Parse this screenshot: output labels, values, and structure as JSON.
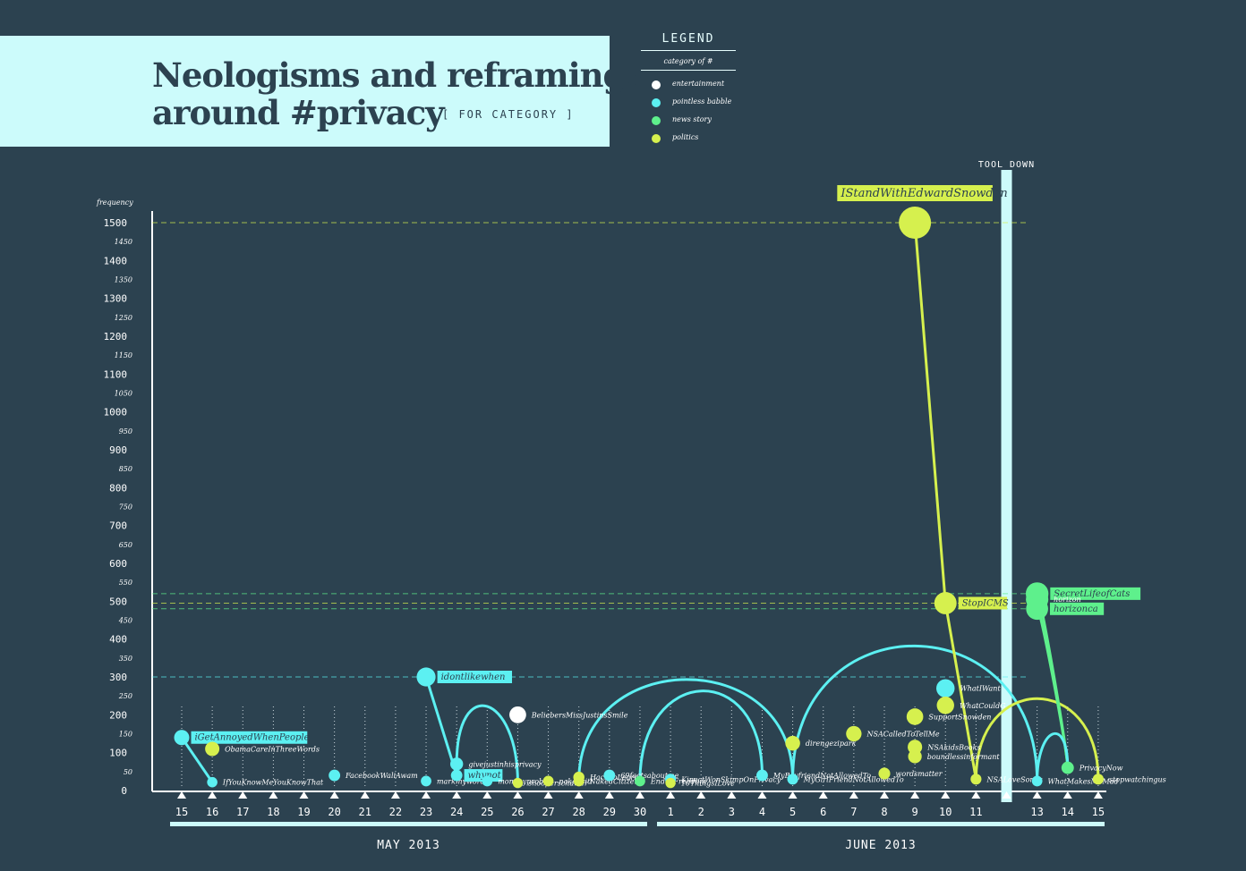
{
  "title": {
    "line1": "Neologisms  and reframings",
    "line2": "around #privacy",
    "tag": "[ FOR CATEGORY ]"
  },
  "legend": {
    "title": "LEGEND",
    "subtitle": "category of #",
    "items": [
      {
        "label": "entertainment",
        "color": "#ffffff"
      },
      {
        "label": "pointless babble",
        "color": "#5cf0f2"
      },
      {
        "label": "news story",
        "color": "#5ef08c"
      },
      {
        "label": "politics",
        "color": "#d6f04e"
      }
    ]
  },
  "colors": {
    "background": "#2c4250",
    "babble": "#5cf0f2",
    "news": "#5ef08c",
    "politics": "#d6f04e",
    "entertainment": "#ffffff",
    "accent": "#ccfbfb"
  },
  "chart_data": {
    "type": "scatter",
    "ylabel": "frequency",
    "ylim": [
      0,
      1500
    ],
    "y_ticks_major": [
      "0",
      "100",
      "200",
      "300",
      "400",
      "500",
      "600",
      "700",
      "800",
      "900",
      "1000",
      "1100",
      "1200",
      "1300",
      "1400",
      "1500"
    ],
    "y_ticks_minor": [
      "50",
      "150",
      "250",
      "350",
      "450",
      "550",
      "650",
      "750",
      "850",
      "950",
      "1050",
      "1150",
      "1250",
      "1350",
      "1450"
    ],
    "x_categories": [
      "15",
      "16",
      "17",
      "18",
      "19",
      "20",
      "21",
      "22",
      "23",
      "24",
      "25",
      "26",
      "27",
      "28",
      "29",
      "30",
      "1",
      "2",
      "3",
      "4",
      "5",
      "6",
      "7",
      "8",
      "9",
      "10",
      "11",
      "12",
      "13",
      "14",
      "15"
    ],
    "x_groups": [
      {
        "label": "MAY 2013",
        "from": 0,
        "to": 15
      },
      {
        "label": "JUNE 2013",
        "from": 16,
        "to": 30
      }
    ],
    "tool_down": {
      "label": "TOOL DOWN",
      "x": "12"
    },
    "points": [
      {
        "name": "iGetAnnoyedWhenPeople",
        "x": 0,
        "y": 140,
        "category": "babble",
        "highlight": true
      },
      {
        "name": "IfYouKnowMeYouKnowThat",
        "x": 1,
        "y": 22,
        "category": "babble"
      },
      {
        "name": "ObamaCareInThreeWords",
        "x": 1,
        "y": 110,
        "category": "politics"
      },
      {
        "name": "FacebookWaliAwam",
        "x": 5,
        "y": 40,
        "category": "babble"
      },
      {
        "name": "markmywords",
        "x": 8,
        "y": 25,
        "category": "babble"
      },
      {
        "name": "idontlikewhen",
        "x": 8,
        "y": 300,
        "category": "babble",
        "highlight": true
      },
      {
        "name": "whynot",
        "x": 9,
        "y": 40,
        "category": "babble",
        "highlight": true
      },
      {
        "name": "givejustinhisprivacy",
        "x": 9,
        "y": 70,
        "category": "babble"
      },
      {
        "name": "mommyprobs",
        "x": 10,
        "y": 25,
        "category": "babble"
      },
      {
        "name": "BeliebersMissJustinsSmile",
        "x": 11,
        "y": 200,
        "category": "entertainment"
      },
      {
        "name": "snooperscharter",
        "x": 11,
        "y": 20,
        "category": "politics"
      },
      {
        "name": "nakedciti",
        "x": 12,
        "y": 25,
        "category": "politics"
      },
      {
        "name": "NakedCitizens",
        "x": 13,
        "y": 25,
        "category": "politics"
      },
      {
        "name": "HackToLearn",
        "x": 13,
        "y": 35,
        "category": "politics"
      },
      {
        "name": "69factsaboutme",
        "x": 14,
        "y": 40,
        "category": "babble"
      },
      {
        "name": "EndOfFreedom",
        "x": 15,
        "y": 25,
        "category": "news"
      },
      {
        "name": "KinectWonSkimpOnPrivacy",
        "x": 16,
        "y": 30,
        "category": "babble"
      },
      {
        "name": "10ThingsILove",
        "x": 16,
        "y": 20,
        "category": "politics"
      },
      {
        "name": "MyBoyfriendNotAllowedTo",
        "x": 19,
        "y": 40,
        "category": "babble"
      },
      {
        "name": "MyGirlFriendNotAllowedTo",
        "x": 20,
        "y": 30,
        "category": "babble"
      },
      {
        "name": "direngezipark",
        "x": 20,
        "y": 125,
        "category": "politics"
      },
      {
        "name": "NSACalledToTellMe",
        "x": 22,
        "y": 150,
        "category": "politics"
      },
      {
        "name": "NSAkidsBooks",
        "x": 24,
        "y": 115,
        "category": "politics"
      },
      {
        "name": "boundlessinformant",
        "x": 24,
        "y": 90,
        "category": "politics"
      },
      {
        "name": "wordsmatter",
        "x": 23,
        "y": 45,
        "category": "politics"
      },
      {
        "name": "SupportSnowden",
        "x": 24,
        "y": 195,
        "category": "politics"
      },
      {
        "name": "IStandWithEdwardSnowden",
        "x": 24,
        "y": 1500,
        "category": "politics",
        "highlight": true
      },
      {
        "name": "WhatIWant",
        "x": 25,
        "y": 270,
        "category": "babble"
      },
      {
        "name": "WhatCouldG",
        "x": 25,
        "y": 225,
        "category": "politics"
      },
      {
        "name": "StopICMS",
        "x": 25,
        "y": 495,
        "category": "politics",
        "highlight": true
      },
      {
        "name": "NSALoveSongs",
        "x": 26,
        "y": 30,
        "category": "politics"
      },
      {
        "name": "WhatMakesMeMad",
        "x": 28,
        "y": 25,
        "category": "babble"
      },
      {
        "name": "SecretLifeofCats",
        "x": 28,
        "y": 520,
        "category": "news",
        "highlight": true
      },
      {
        "name": "horizon",
        "x": 28,
        "y": 505,
        "category": "news"
      },
      {
        "name": "horizonca",
        "x": 28,
        "y": 480,
        "category": "news",
        "highlight": true
      },
      {
        "name": "PrivacyNow",
        "x": 29,
        "y": 60,
        "category": "news"
      },
      {
        "name": "stopwatchingus",
        "x": 30,
        "y": 30,
        "category": "politics"
      }
    ]
  }
}
